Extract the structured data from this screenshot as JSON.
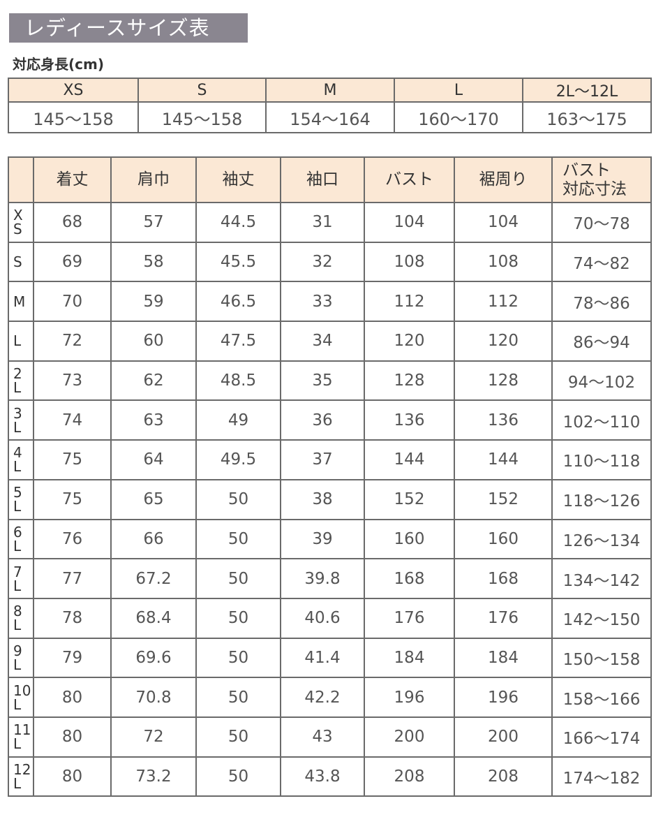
{
  "title": "レディースサイズ表",
  "height_table": {
    "label": "対応身長(cm)",
    "sizes": [
      "XS",
      "S",
      "M",
      "L",
      "2L〜12L"
    ],
    "heights": [
      "145〜158",
      "145〜158",
      "154〜164",
      "160〜170",
      "163〜175"
    ]
  },
  "measure_table": {
    "headers": [
      "",
      "着丈",
      "肩巾",
      "袖丈",
      "袖口",
      "バスト",
      "裾周り",
      "バスト\n対応寸法"
    ],
    "rows": [
      {
        "size": "X\nS",
        "values": [
          "68",
          "57",
          "44.5",
          "31",
          "104",
          "104",
          "70〜78"
        ]
      },
      {
        "size": "S",
        "values": [
          "69",
          "58",
          "45.5",
          "32",
          "108",
          "108",
          "74〜82"
        ]
      },
      {
        "size": "M",
        "values": [
          "70",
          "59",
          "46.5",
          "33",
          "112",
          "112",
          "78〜86"
        ]
      },
      {
        "size": "L",
        "values": [
          "72",
          "60",
          "47.5",
          "34",
          "120",
          "120",
          "86〜94"
        ]
      },
      {
        "size": "2\nL",
        "values": [
          "73",
          "62",
          "48.5",
          "35",
          "128",
          "128",
          "94〜102"
        ]
      },
      {
        "size": "3\nL",
        "values": [
          "74",
          "63",
          "49",
          "36",
          "136",
          "136",
          "102〜110"
        ]
      },
      {
        "size": "4\nL",
        "values": [
          "75",
          "64",
          "49.5",
          "37",
          "144",
          "144",
          "110〜118"
        ]
      },
      {
        "size": "5\nL",
        "values": [
          "75",
          "65",
          "50",
          "38",
          "152",
          "152",
          "118〜126"
        ]
      },
      {
        "size": "6\nL",
        "values": [
          "76",
          "66",
          "50",
          "39",
          "160",
          "160",
          "126〜134"
        ]
      },
      {
        "size": "7\nL",
        "values": [
          "77",
          "67.2",
          "50",
          "39.8",
          "168",
          "168",
          "134〜142"
        ]
      },
      {
        "size": "8\nL",
        "values": [
          "78",
          "68.4",
          "50",
          "40.6",
          "176",
          "176",
          "142〜150"
        ]
      },
      {
        "size": "9\nL",
        "values": [
          "79",
          "69.6",
          "50",
          "41.4",
          "184",
          "184",
          "150〜158"
        ]
      },
      {
        "size": "10\nL",
        "values": [
          "80",
          "70.8",
          "50",
          "42.2",
          "196",
          "196",
          "158〜166"
        ]
      },
      {
        "size": "11\nL",
        "values": [
          "80",
          "72",
          "50",
          "43",
          "200",
          "200",
          "166〜174"
        ]
      },
      {
        "size": "12\nL",
        "values": [
          "80",
          "73.2",
          "50",
          "43.8",
          "208",
          "208",
          "174〜182"
        ]
      }
    ]
  },
  "colors": {
    "title_bg": "#8a8690",
    "header_bg": "#fbe8d5",
    "border": "#6a6a6a"
  }
}
